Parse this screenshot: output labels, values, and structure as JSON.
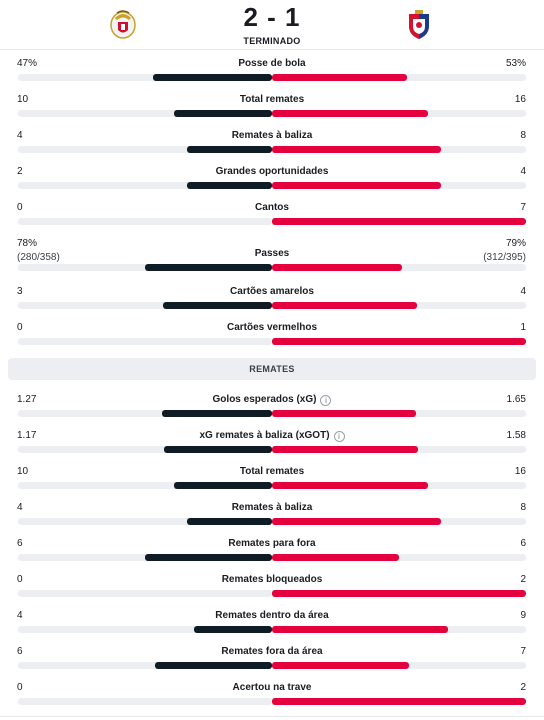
{
  "match": {
    "score": "2 - 1",
    "status": "TERMINADO",
    "home_crest_icon": "benfica-crest-icon",
    "away_crest_icon": "gil-vicente-crest-icon"
  },
  "colors": {
    "home": "#0f1c26",
    "away": "#e5003e",
    "track": "#eceef1"
  },
  "overview": [
    {
      "label": "Posse de bola",
      "home": "47%",
      "away": "53%",
      "home_share": 0.47,
      "away_share": 0.53
    },
    {
      "label": "Total remates",
      "home": "10",
      "away": "16",
      "home_share": 0.385,
      "away_share": 0.615
    },
    {
      "label": "Remates à baliza",
      "home": "4",
      "away": "8",
      "home_share": 0.333,
      "away_share": 0.667
    },
    {
      "label": "Grandes oportunidades",
      "home": "2",
      "away": "4",
      "home_share": 0.333,
      "away_share": 0.667
    },
    {
      "label": "Cantos",
      "home": "0",
      "away": "7",
      "home_share": 0,
      "away_share": 1
    },
    {
      "label": "Passes",
      "home": "78%",
      "home_sub": "(280/358)",
      "away": "79%",
      "away_sub": "(312/395)",
      "home_share": 0.5,
      "away_share": 0.51
    },
    {
      "label": "Cartões amarelos",
      "home": "3",
      "away": "4",
      "home_share": 0.429,
      "away_share": 0.571
    },
    {
      "label": "Cartões vermelhos",
      "home": "0",
      "away": "1",
      "home_share": 0,
      "away_share": 1
    }
  ],
  "shots_section": {
    "title": "REMATES",
    "stats": [
      {
        "label": "Golos esperados (xG)",
        "info": "i",
        "home": "1.27",
        "away": "1.65",
        "home_share": 0.435,
        "away_share": 0.565
      },
      {
        "label": "xG remates à baliza (xGOT)",
        "info": "i",
        "home": "1.17",
        "away": "1.58",
        "home_share": 0.425,
        "away_share": 0.575
      },
      {
        "label": "Total remates",
        "home": "10",
        "away": "16",
        "home_share": 0.385,
        "away_share": 0.615
      },
      {
        "label": "Remates à baliza",
        "home": "4",
        "away": "8",
        "home_share": 0.333,
        "away_share": 0.667
      },
      {
        "label": "Remates para fora",
        "home": "6",
        "away": "6",
        "home_share": 0.5,
        "away_share": 0.5
      },
      {
        "label": "Remates bloqueados",
        "home": "0",
        "away": "2",
        "home_share": 0,
        "away_share": 1
      },
      {
        "label": "Remates dentro da área",
        "home": "4",
        "away": "9",
        "home_share": 0.308,
        "away_share": 0.692
      },
      {
        "label": "Remates fora da área",
        "home": "6",
        "away": "7",
        "home_share": 0.462,
        "away_share": 0.538
      },
      {
        "label": "Acertou na trave",
        "home": "0",
        "away": "2",
        "home_share": 0,
        "away_share": 1
      }
    ]
  }
}
